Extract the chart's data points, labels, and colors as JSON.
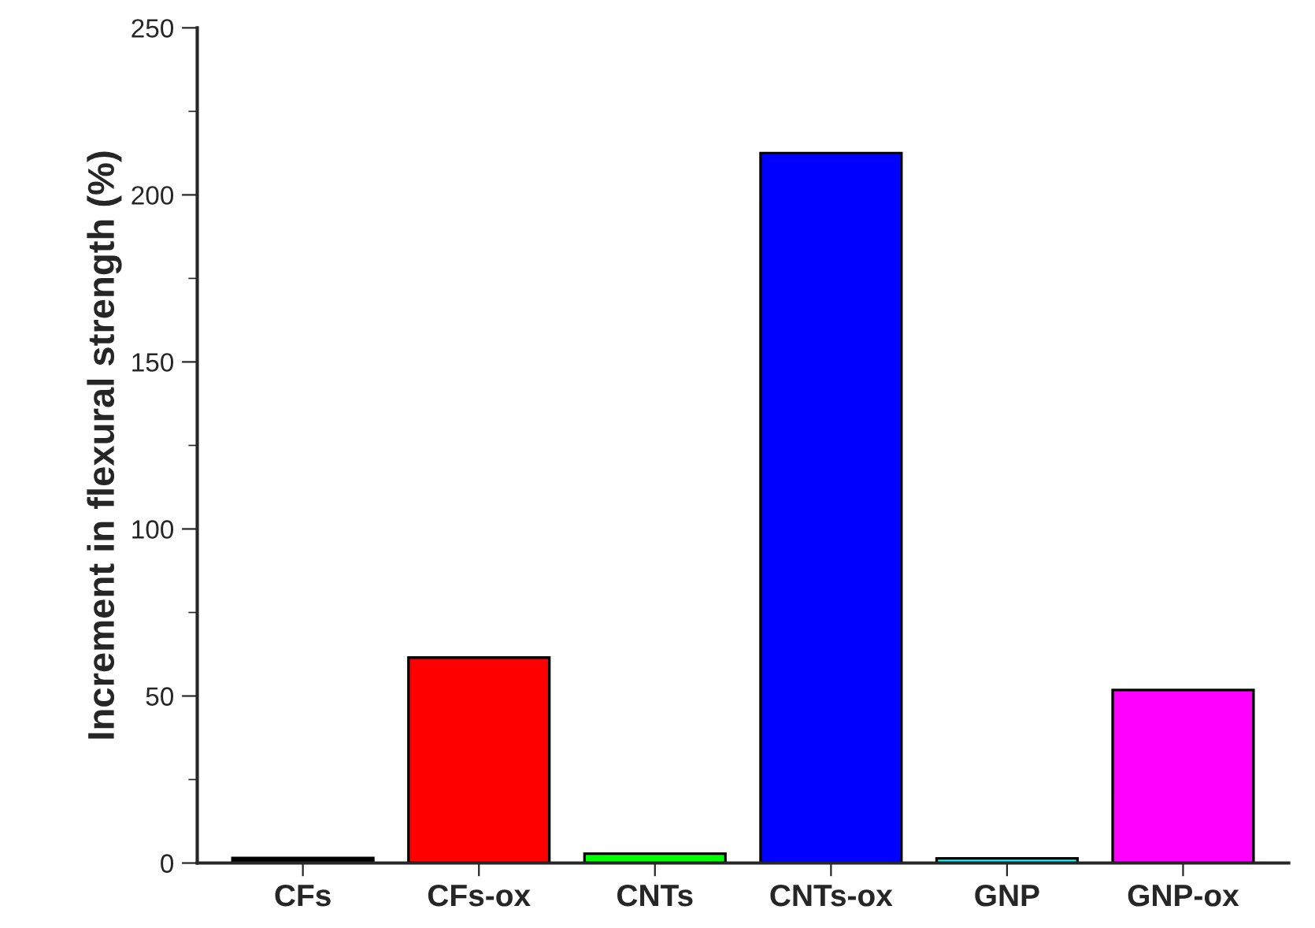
{
  "chart_data": {
    "type": "bar",
    "ylabel": "Increment in flexural strength (%)",
    "categories": [
      "CFs",
      "CFs-ox",
      "CNTs",
      "CNTs-ox",
      "GNP",
      "GNP-ox"
    ],
    "values": [
      1.5,
      61.5,
      2.8,
      212.5,
      1.4,
      51.8
    ],
    "colors": [
      "#000000",
      "#ff0000",
      "#00ff00",
      "#0000ff",
      "#00ffff",
      "#ff00ff"
    ],
    "ylim": [
      0,
      250
    ],
    "yticks": [
      0,
      {
        "value": 25,
        "label": null
      },
      50,
      {
        "value": 75,
        "label": null
      },
      100,
      {
        "value": 125,
        "label": null
      },
      150,
      {
        "value": 175,
        "label": null
      },
      200,
      {
        "value": 225,
        "label": null
      },
      250
    ],
    "grid": false
  }
}
